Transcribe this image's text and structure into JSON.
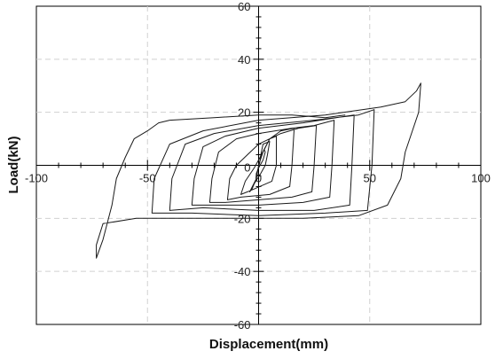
{
  "chart_data": {
    "type": "line",
    "title": "",
    "xlabel": "Displacement(mm)",
    "ylabel": "Load(kN)",
    "xlim": [
      -100,
      100
    ],
    "ylim": [
      -60,
      60
    ],
    "x_ticks": [
      -100,
      -50,
      0,
      50,
      100
    ],
    "y_ticks": [
      -60,
      -40,
      -20,
      0,
      20,
      40,
      60
    ],
    "x_tick_labels": [
      "-100",
      "-50",
      "0",
      "50",
      "100"
    ],
    "y_tick_labels": [
      "-60",
      "-40",
      "-20",
      "0",
      "20",
      "40",
      "60"
    ],
    "grid": true,
    "legend": "none",
    "line_color": "#1a1a1a",
    "grid_color": "#d0d0d0",
    "series": [
      {
        "points": [
          [
            0,
            0
          ],
          [
            1,
            3
          ],
          [
            2.5,
            6
          ],
          [
            3,
            5
          ],
          [
            2,
            2
          ],
          [
            0,
            -1
          ],
          [
            -1,
            -3
          ],
          [
            -1.2,
            -5
          ],
          [
            -0.5,
            -2
          ],
          [
            0.5,
            1
          ],
          [
            1,
            4
          ],
          [
            2,
            8
          ],
          [
            5,
            9
          ],
          [
            4,
            4
          ],
          [
            3,
            0
          ],
          [
            1,
            -3
          ],
          [
            -2,
            -7
          ],
          [
            -3,
            -9
          ],
          [
            -4,
            -10
          ],
          [
            -1,
            -5
          ],
          [
            0,
            0
          ],
          [
            2,
            5
          ],
          [
            5,
            10
          ],
          [
            8,
            11
          ],
          [
            8,
            0
          ],
          [
            6,
            -6
          ],
          [
            -5,
            -10
          ],
          [
            -8,
            -11
          ],
          [
            -6,
            -6
          ],
          [
            -2,
            -1
          ],
          [
            0,
            2
          ],
          [
            5,
            10
          ],
          [
            10,
            13
          ],
          [
            16,
            14
          ],
          [
            15,
            0
          ],
          [
            14,
            -8
          ],
          [
            5,
            -11
          ],
          [
            -8,
            -12
          ],
          [
            -14,
            -13
          ],
          [
            -13,
            -5
          ],
          [
            -10,
            0
          ],
          [
            -5,
            4
          ],
          [
            0,
            8
          ],
          [
            10,
            12
          ],
          [
            18,
            14
          ],
          [
            26,
            15
          ],
          [
            25,
            0
          ],
          [
            24,
            -10
          ],
          [
            15,
            -12
          ],
          [
            0,
            -13
          ],
          [
            -15,
            -14
          ],
          [
            -22,
            -14
          ],
          [
            -21,
            -5
          ],
          [
            -18,
            5
          ],
          [
            -10,
            10
          ],
          [
            0,
            12
          ],
          [
            15,
            14
          ],
          [
            25,
            15
          ],
          [
            34,
            17
          ],
          [
            33,
            0
          ],
          [
            32,
            -12
          ],
          [
            20,
            -14
          ],
          [
            0,
            -15
          ],
          [
            -20,
            -15
          ],
          [
            -30,
            -15
          ],
          [
            -29,
            -5
          ],
          [
            -25,
            7
          ],
          [
            -15,
            11
          ],
          [
            0,
            14
          ],
          [
            20,
            16
          ],
          [
            35,
            18
          ],
          [
            43,
            19
          ],
          [
            42,
            0
          ],
          [
            41,
            -15
          ],
          [
            25,
            -17
          ],
          [
            0,
            -17
          ],
          [
            -25,
            -16
          ],
          [
            -40,
            -17
          ],
          [
            -39,
            -5
          ],
          [
            -33,
            8
          ],
          [
            -20,
            12
          ],
          [
            0,
            15
          ],
          [
            25,
            17
          ],
          [
            45,
            19
          ],
          [
            52,
            21
          ],
          [
            51,
            0
          ],
          [
            49,
            -17
          ],
          [
            30,
            -18
          ],
          [
            0,
            -19
          ],
          [
            -30,
            -18
          ],
          [
            -48,
            -18
          ],
          [
            -47,
            -5
          ],
          [
            -40,
            8
          ],
          [
            -25,
            13
          ],
          [
            0,
            17
          ],
          [
            30,
            19
          ],
          [
            55,
            22
          ],
          [
            66,
            24
          ],
          [
            71,
            28
          ],
          [
            73,
            31
          ],
          [
            72,
            20
          ],
          [
            66,
            5
          ],
          [
            64,
            -5
          ],
          [
            58,
            -15
          ],
          [
            45,
            -19
          ],
          [
            20,
            -20
          ],
          [
            0,
            -20
          ],
          [
            -25,
            -20
          ],
          [
            -55,
            -20
          ],
          [
            -70,
            -22
          ],
          [
            -73,
            -30
          ],
          [
            -73,
            -35
          ],
          [
            -70,
            -28
          ],
          [
            -66,
            -15
          ],
          [
            -64,
            -5
          ],
          [
            -60,
            3
          ],
          [
            -56,
            10
          ],
          [
            -50,
            13
          ],
          [
            -45,
            16
          ],
          [
            -40,
            17
          ],
          [
            -20,
            18
          ],
          [
            0,
            19
          ],
          [
            15,
            19
          ],
          [
            30,
            18
          ],
          [
            39,
            19
          ]
        ]
      }
    ]
  }
}
